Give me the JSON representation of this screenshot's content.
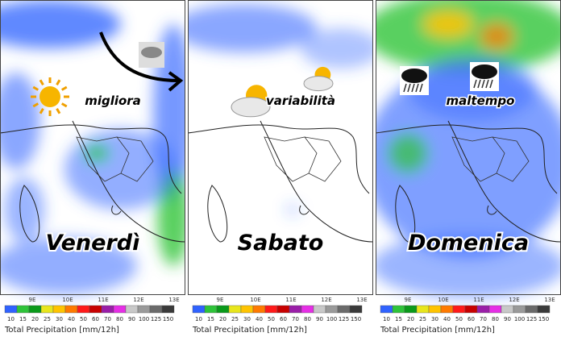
{
  "panels": [
    {
      "day": "Venerdì",
      "note": "migliora"
    },
    {
      "day": "Sabato",
      "note": "variabilità"
    },
    {
      "day": "Domenica",
      "note": "maltempo"
    }
  ],
  "lon_labels": [
    "9E",
    "10E",
    "11E",
    "12E",
    "13E"
  ],
  "legend": {
    "title": "Total Precipitation [mm/12h]",
    "levels": [
      10,
      15,
      20,
      25,
      30,
      40,
      50,
      60,
      70,
      80,
      90,
      100,
      125,
      150
    ],
    "colors": [
      "#2f62ff",
      "#2ec43a",
      "#0a9a1a",
      "#e8e61c",
      "#ffc400",
      "#ff7a00",
      "#ff1a1a",
      "#c80000",
      "#9a1ea8",
      "#e62ee6",
      "#c8c8c8",
      "#9a9a9a",
      "#6a6a6a",
      "#3a3a3a"
    ]
  }
}
